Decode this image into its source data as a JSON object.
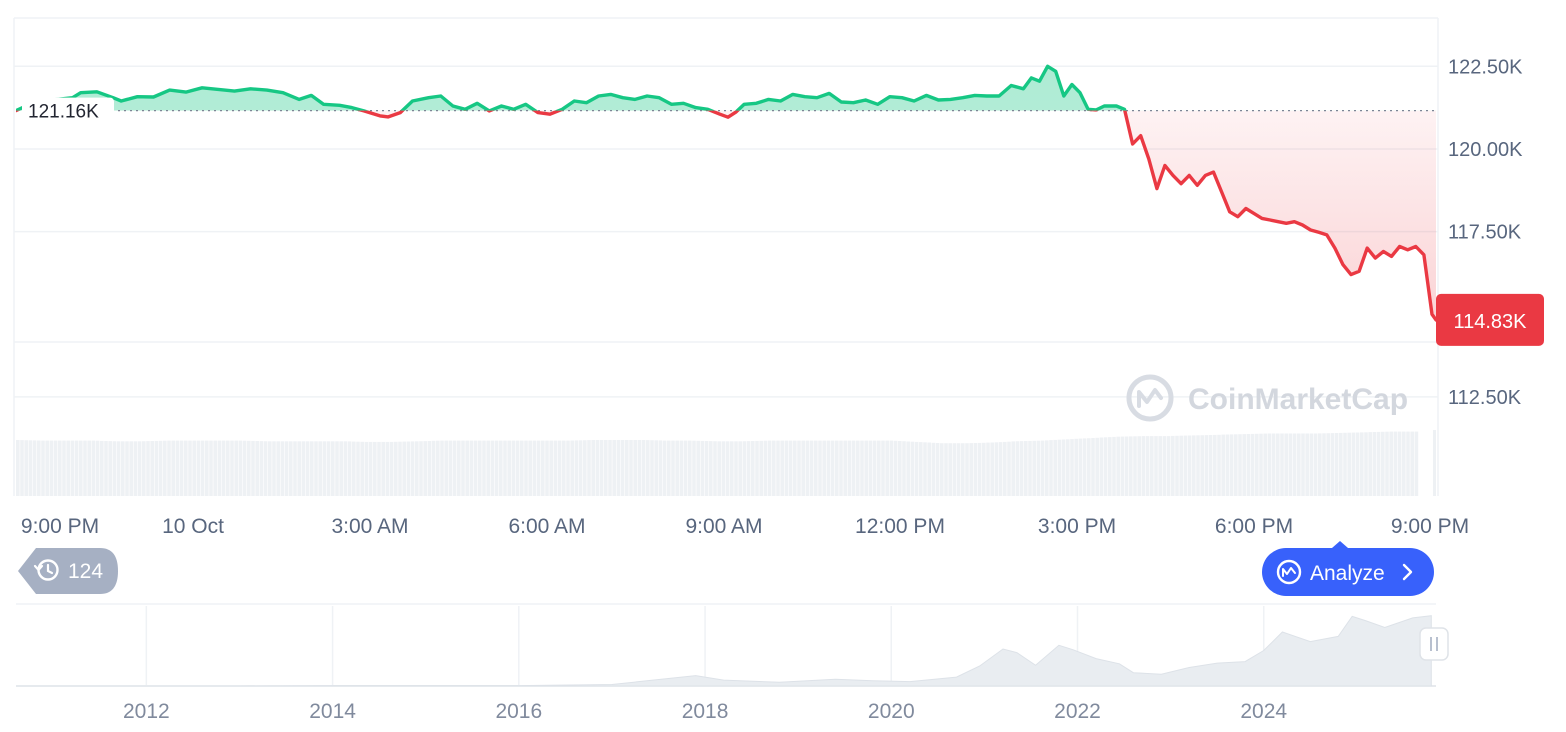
{
  "chart_data": {
    "type": "line",
    "y_ticks": [
      "122.50K",
      "120.00K",
      "117.50K",
      "112.50K"
    ],
    "x_ticks": [
      "9:00 PM",
      "10 Oct",
      "3:00 AM",
      "6:00 AM",
      "9:00 AM",
      "12:00 PM",
      "3:00 PM",
      "6:00 PM",
      "9:00 PM"
    ],
    "ylim": [
      111500,
      123900
    ],
    "reference": {
      "value": 121160,
      "label": "121.16K"
    },
    "current": {
      "value": 114830,
      "label": "114.83K"
    },
    "colors": {
      "up": "#16c784",
      "down": "#ea3943"
    },
    "price_points": [
      [
        0,
        121.16
      ],
      [
        0.3,
        121.33
      ],
      [
        0.6,
        121.42
      ],
      [
        1.0,
        121.5
      ],
      [
        1.4,
        121.55
      ],
      [
        1.6,
        121.7
      ],
      [
        2.0,
        121.73
      ],
      [
        2.4,
        121.55
      ],
      [
        2.6,
        121.45
      ],
      [
        3.0,
        121.58
      ],
      [
        3.4,
        121.57
      ],
      [
        3.8,
        121.78
      ],
      [
        4.2,
        121.72
      ],
      [
        4.6,
        121.85
      ],
      [
        5.0,
        121.8
      ],
      [
        5.4,
        121.75
      ],
      [
        5.8,
        121.82
      ],
      [
        6.2,
        121.78
      ],
      [
        6.6,
        121.7
      ],
      [
        7.0,
        121.5
      ],
      [
        7.3,
        121.62
      ],
      [
        7.6,
        121.35
      ],
      [
        8.0,
        121.32
      ],
      [
        8.3,
        121.25
      ],
      [
        8.6,
        121.15
      ],
      [
        9.0,
        121.0
      ],
      [
        9.2,
        120.97
      ],
      [
        9.5,
        121.1
      ],
      [
        9.8,
        121.45
      ],
      [
        10.2,
        121.55
      ],
      [
        10.5,
        121.6
      ],
      [
        10.8,
        121.3
      ],
      [
        11.1,
        121.2
      ],
      [
        11.4,
        121.38
      ],
      [
        11.7,
        121.15
      ],
      [
        12.0,
        121.3
      ],
      [
        12.3,
        121.2
      ],
      [
        12.6,
        121.35
      ],
      [
        12.9,
        121.1
      ],
      [
        13.2,
        121.05
      ],
      [
        13.5,
        121.2
      ],
      [
        13.8,
        121.45
      ],
      [
        14.1,
        121.4
      ],
      [
        14.4,
        121.6
      ],
      [
        14.7,
        121.65
      ],
      [
        15.0,
        121.55
      ],
      [
        15.3,
        121.5
      ],
      [
        15.6,
        121.6
      ],
      [
        15.9,
        121.55
      ],
      [
        16.2,
        121.35
      ],
      [
        16.5,
        121.38
      ],
      [
        16.8,
        121.25
      ],
      [
        17.1,
        121.2
      ],
      [
        17.4,
        121.05
      ],
      [
        17.6,
        120.96
      ],
      [
        17.8,
        121.12
      ],
      [
        18.0,
        121.35
      ],
      [
        18.3,
        121.38
      ],
      [
        18.6,
        121.5
      ],
      [
        18.9,
        121.45
      ],
      [
        19.2,
        121.65
      ],
      [
        19.5,
        121.58
      ],
      [
        19.8,
        121.55
      ],
      [
        20.1,
        121.68
      ],
      [
        20.4,
        121.42
      ],
      [
        20.7,
        121.4
      ],
      [
        21.0,
        121.48
      ],
      [
        21.3,
        121.35
      ],
      [
        21.6,
        121.58
      ],
      [
        21.9,
        121.55
      ],
      [
        22.2,
        121.45
      ],
      [
        22.5,
        121.62
      ],
      [
        22.8,
        121.48
      ],
      [
        23.1,
        121.5
      ],
      [
        23.4,
        121.55
      ],
      [
        23.7,
        121.62
      ],
      [
        24.0,
        121.6
      ],
      [
        24.3,
        121.6
      ],
      [
        24.6,
        121.92
      ],
      [
        24.9,
        121.82
      ],
      [
        25.1,
        122.15
      ],
      [
        25.3,
        122.05
      ],
      [
        25.5,
        122.5
      ],
      [
        25.7,
        122.35
      ],
      [
        25.9,
        121.6
      ],
      [
        26.1,
        121.95
      ],
      [
        26.3,
        121.7
      ],
      [
        26.5,
        121.2
      ],
      [
        26.7,
        121.18
      ],
      [
        26.9,
        121.3
      ],
      [
        27.2,
        121.3
      ],
      [
        27.4,
        121.2
      ],
      [
        27.6,
        120.15
      ],
      [
        27.8,
        120.4
      ],
      [
        28.0,
        119.7
      ],
      [
        28.2,
        118.8
      ],
      [
        28.4,
        119.5
      ],
      [
        28.6,
        119.2
      ],
      [
        28.8,
        118.95
      ],
      [
        29.0,
        119.2
      ],
      [
        29.2,
        118.9
      ],
      [
        29.4,
        119.2
      ],
      [
        29.6,
        119.3
      ],
      [
        29.8,
        118.7
      ],
      [
        30.0,
        118.1
      ],
      [
        30.2,
        117.95
      ],
      [
        30.4,
        118.2
      ],
      [
        30.6,
        118.05
      ],
      [
        30.8,
        117.9
      ],
      [
        31.0,
        117.85
      ],
      [
        31.2,
        117.8
      ],
      [
        31.4,
        117.75
      ],
      [
        31.6,
        117.8
      ],
      [
        31.8,
        117.7
      ],
      [
        32.0,
        117.55
      ],
      [
        32.2,
        117.48
      ],
      [
        32.4,
        117.4
      ],
      [
        32.6,
        117.0
      ],
      [
        32.8,
        116.5
      ],
      [
        33.0,
        116.2
      ],
      [
        33.2,
        116.3
      ],
      [
        33.4,
        117.0
      ],
      [
        33.6,
        116.7
      ],
      [
        33.8,
        116.9
      ],
      [
        34.0,
        116.75
      ],
      [
        34.2,
        117.05
      ],
      [
        34.4,
        116.95
      ],
      [
        34.6,
        117.05
      ],
      [
        34.8,
        116.8
      ],
      [
        35.0,
        115.0
      ],
      [
        35.1,
        114.83
      ]
    ],
    "volume_relative": [
      0.87,
      0.86,
      0.86,
      0.86,
      0.85,
      0.85,
      0.86,
      0.86,
      0.86,
      0.86,
      0.85,
      0.85,
      0.85,
      0.85,
      0.84,
      0.84,
      0.85,
      0.86,
      0.86,
      0.86,
      0.86,
      0.86,
      0.86,
      0.87,
      0.87,
      0.87,
      0.86,
      0.86,
      0.85,
      0.85,
      0.86,
      0.86,
      0.86,
      0.86,
      0.86,
      0.86,
      0.84,
      0.82,
      0.82,
      0.83,
      0.85,
      0.86,
      0.88,
      0.9,
      0.92,
      0.93,
      0.93,
      0.94,
      0.95,
      0.96,
      0.97,
      0.97,
      0.97,
      0.98,
      0.99,
      1.0,
      1.0
    ],
    "navigator": {
      "x_ticks": [
        "2012",
        "2014",
        "2016",
        "2018",
        "2020",
        "2022",
        "2024"
      ],
      "x_tick_years": [
        2012,
        2014,
        2016,
        2018,
        2020,
        2022,
        2024
      ],
      "xlim": [
        2010.6,
        2025.85
      ],
      "price_relative": [
        [
          2010.6,
          0.0
        ],
        [
          2013.0,
          0.0
        ],
        [
          2014.0,
          0.005
        ],
        [
          2016.0,
          0.005
        ],
        [
          2017.0,
          0.02
        ],
        [
          2017.9,
          0.14
        ],
        [
          2018.2,
          0.08
        ],
        [
          2018.8,
          0.05
        ],
        [
          2019.4,
          0.09
        ],
        [
          2019.8,
          0.07
        ],
        [
          2020.2,
          0.06
        ],
        [
          2020.7,
          0.12
        ],
        [
          2020.95,
          0.27
        ],
        [
          2021.2,
          0.5
        ],
        [
          2021.35,
          0.45
        ],
        [
          2021.55,
          0.28
        ],
        [
          2021.8,
          0.55
        ],
        [
          2021.95,
          0.49
        ],
        [
          2022.2,
          0.37
        ],
        [
          2022.45,
          0.3
        ],
        [
          2022.6,
          0.18
        ],
        [
          2022.9,
          0.16
        ],
        [
          2023.2,
          0.25
        ],
        [
          2023.5,
          0.31
        ],
        [
          2023.8,
          0.33
        ],
        [
          2024.0,
          0.48
        ],
        [
          2024.2,
          0.73
        ],
        [
          2024.5,
          0.6
        ],
        [
          2024.8,
          0.67
        ],
        [
          2024.95,
          0.94
        ],
        [
          2025.1,
          0.88
        ],
        [
          2025.3,
          0.79
        ],
        [
          2025.6,
          0.92
        ],
        [
          2025.8,
          0.95
        ]
      ]
    }
  },
  "ui": {
    "watermark": "CoinMarketCap",
    "history_count": "124",
    "analyze_label": "Analyze"
  }
}
